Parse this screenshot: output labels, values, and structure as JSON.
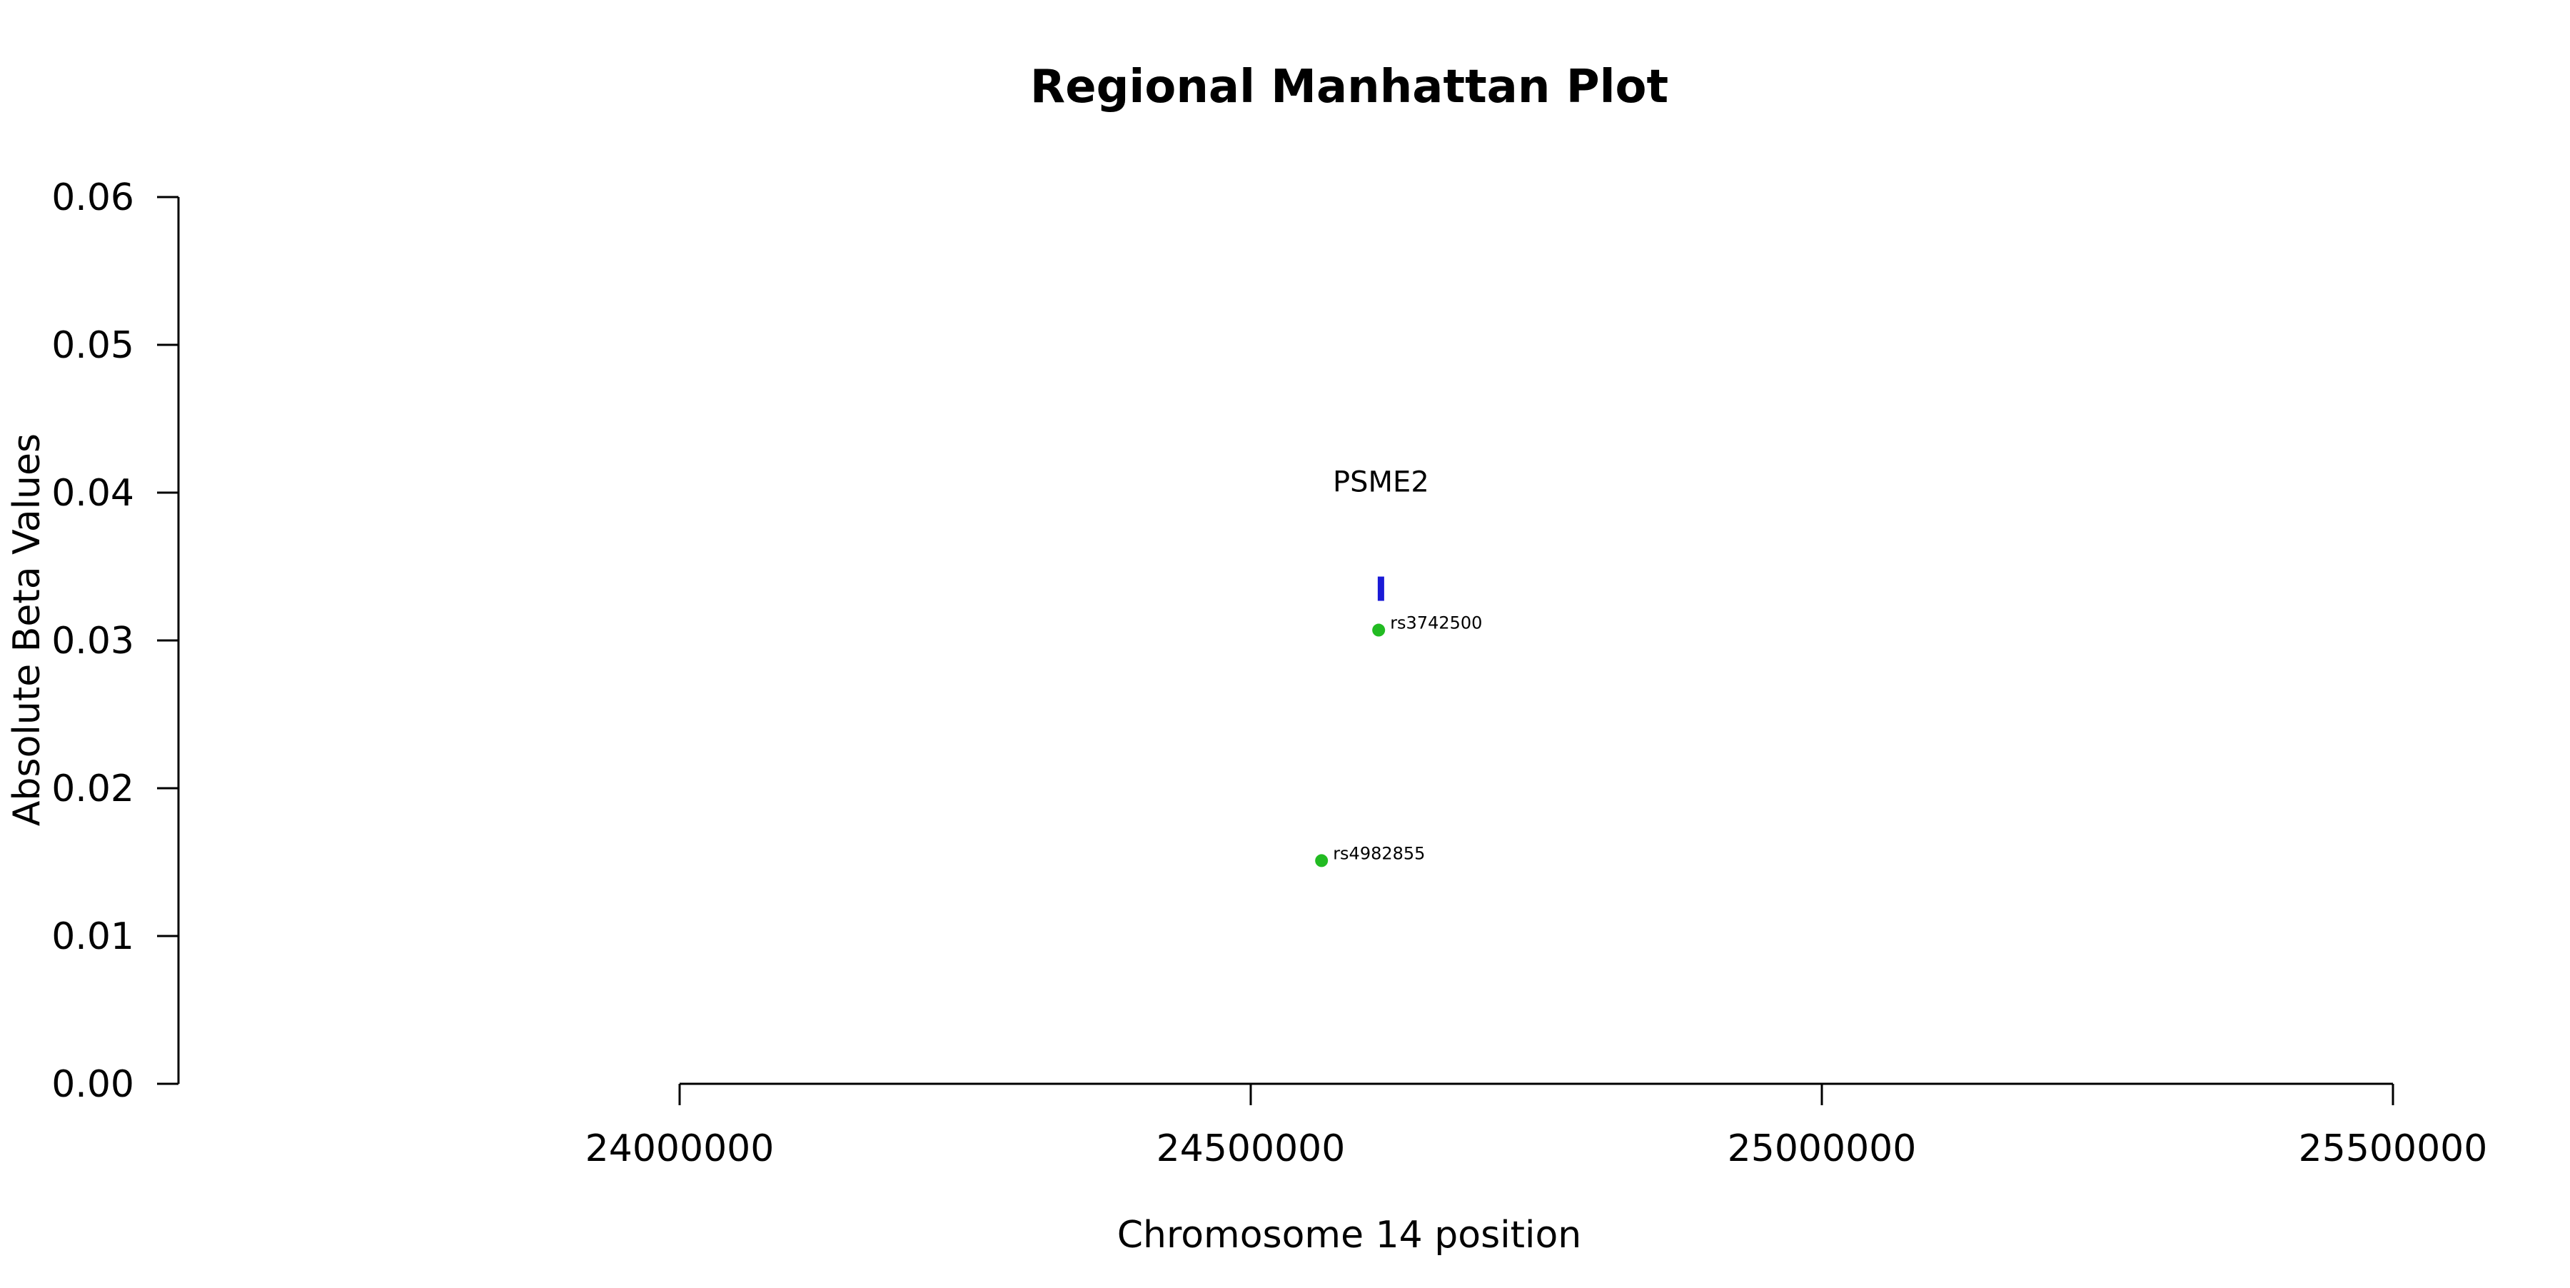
{
  "chart_data": {
    "type": "scatter",
    "title": "Regional Manhattan Plot",
    "xlabel": "Chromosome 14 position",
    "ylabel": "Absolute Beta Values",
    "xlim": [
      23560000,
      25650000
    ],
    "ylim": [
      0,
      0.06
    ],
    "x_ticks": [
      24000000,
      24500000,
      25000000,
      25500000
    ],
    "x_tick_labels": [
      "24000000",
      "24500000",
      "25000000",
      "25500000"
    ],
    "y_ticks": [
      0,
      0.01,
      0.02,
      0.03,
      0.04,
      0.05,
      0.06
    ],
    "y_tick_labels": [
      "0.00",
      "0.01",
      "0.02",
      "0.03",
      "0.04",
      "0.05",
      "0.06"
    ],
    "grid": false,
    "points": [
      {
        "label": "rs3742500",
        "x": 24612000,
        "y": 0.0307,
        "color": "#22bb22"
      },
      {
        "label": "rs4982855",
        "x": 24562000,
        "y": 0.0151,
        "color": "#22bb22"
      }
    ],
    "genes": [
      {
        "name": "PSME2",
        "start": 24612000,
        "end": 24616000,
        "y": 0.0335,
        "color": "#1a1ad6"
      }
    ]
  }
}
